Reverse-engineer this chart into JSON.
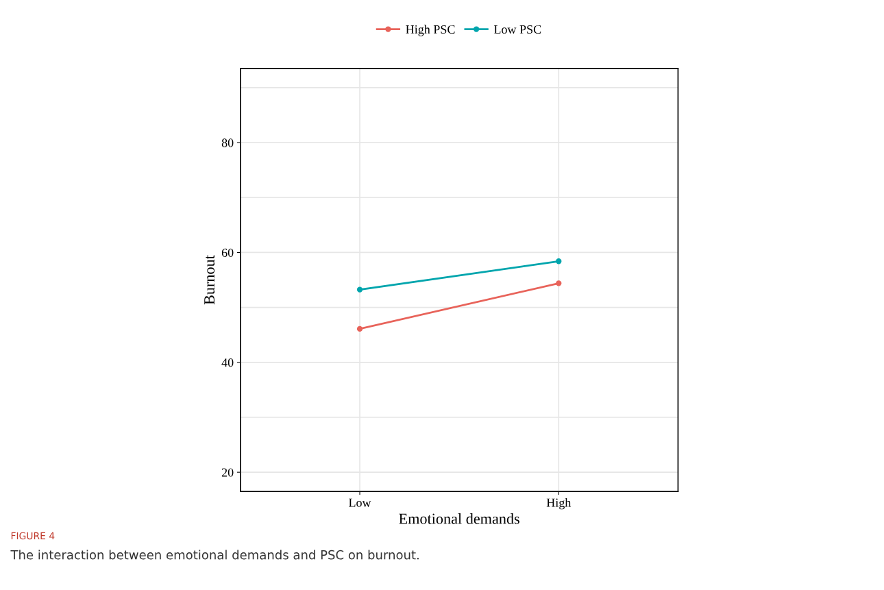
{
  "chart_data": {
    "type": "line",
    "categories": [
      "Low",
      "High"
    ],
    "series": [
      {
        "name": "High PSC",
        "color": "#e8635a",
        "values": [
          46.1,
          54.4
        ]
      },
      {
        "name": "Low PSC",
        "color": "#00a5ad",
        "values": [
          53.25,
          58.4
        ]
      }
    ],
    "xlabel": "Emotional demands",
    "ylabel": "Burnout",
    "ylim": [
      16.5,
      93.5
    ],
    "yticks": [
      20,
      40,
      60,
      80
    ],
    "grid": true,
    "legend": "top",
    "marker": "circle",
    "line_style": "solid",
    "annotations": [
      "FIGURE 4",
      "The interaction between emotional demands and PSC on burnout."
    ]
  }
}
